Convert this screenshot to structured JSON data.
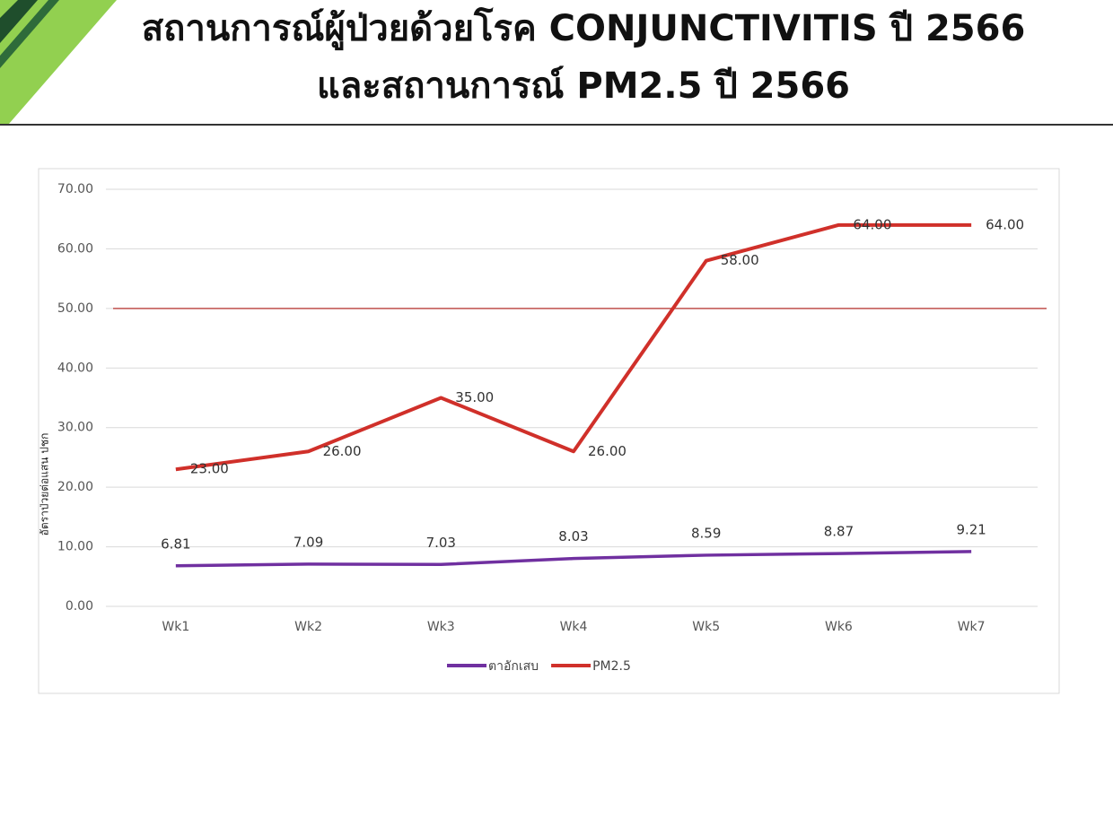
{
  "chart_data": {
    "type": "line",
    "title": [
      "สถานการณ์ผู้ป่วยด้วยโรค CONJUNCTIVITIS ปี 2566",
      "และสถานการณ์ PM2.5 ปี 2566"
    ],
    "y_label": "อัตราป่วยต่อแสน ปชก",
    "categories": [
      "Wk1",
      "Wk2",
      "Wk3",
      "Wk4",
      "Wk5",
      "Wk6",
      "Wk7"
    ],
    "series": [
      {
        "name": "ตาอักเสบ",
        "color": "#7030a0",
        "values": [
          6.81,
          7.09,
          7.03,
          8.03,
          8.59,
          8.87,
          9.21
        ],
        "value_labels": [
          "6.81",
          "7.09",
          "7.03",
          "8.03",
          "8.59",
          "8.87",
          "9.21"
        ]
      },
      {
        "name": "PM2.5",
        "color": "#d0302a",
        "values": [
          23,
          26,
          35,
          26,
          58,
          64,
          64
        ],
        "value_labels": [
          "23.00",
          "26.00",
          "35.00",
          "26.00",
          "58.00",
          "64.00",
          "64.00"
        ]
      }
    ],
    "reference_line": 50,
    "reference_color": "#c0504d",
    "ylim": [
      0,
      70
    ],
    "yticks": [
      {
        "value": 0,
        "label": "0.00"
      },
      {
        "value": 10,
        "label": "10.00"
      },
      {
        "value": 20,
        "label": "20.00"
      },
      {
        "value": 30,
        "label": "30.00"
      },
      {
        "value": 40,
        "label": "40.00"
      },
      {
        "value": 50,
        "label": "50.00"
      },
      {
        "value": 60,
        "label": "60.00"
      },
      {
        "value": 70,
        "label": "70.00"
      }
    ],
    "grid": true,
    "legend": "bottom"
  }
}
